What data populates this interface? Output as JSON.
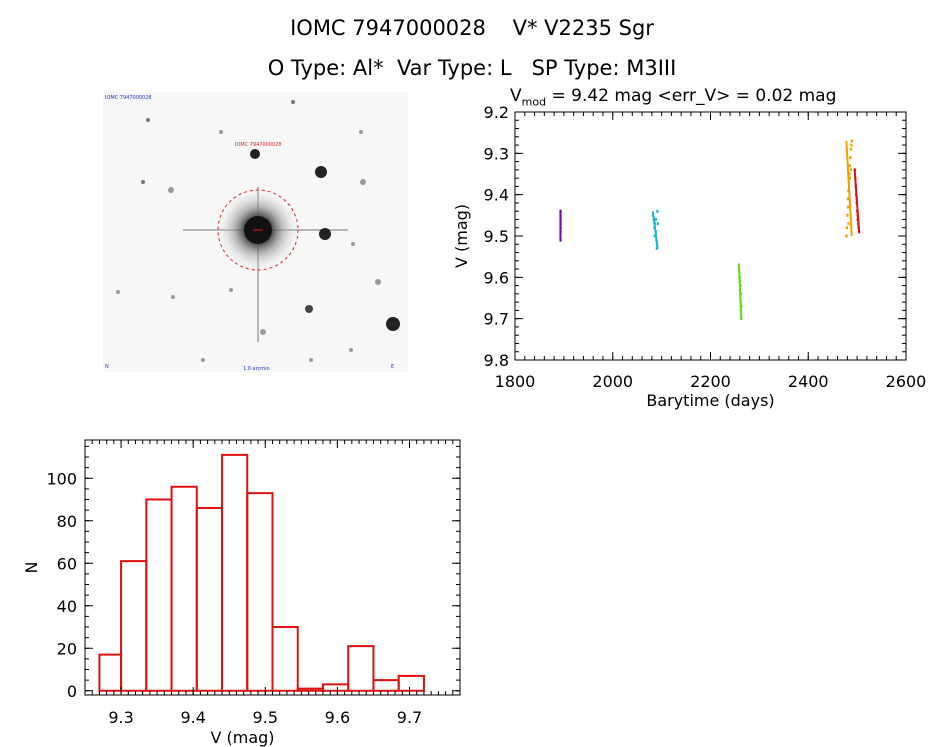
{
  "header": {
    "line1": "IOMC 7947000028    V* V2235 Sgr",
    "line2": "O Type: Al*  Var Type: L   SP Type: M3III",
    "stats_prefix": "V",
    "stats_sub": "mod",
    "stats_rest": " = 9.42 mag <err_V> = 0.02 mag"
  },
  "stamp": {
    "label_top_left": "IOMC 7947000028",
    "label_target": "IOMC 7947000028",
    "label_bottom_left": "N",
    "label_bottom_center": "1.0 arcmin",
    "label_bottom_right": "E"
  },
  "chart_data": [
    {
      "type": "scatter",
      "xlabel": "Barytime (days)",
      "ylabel": "V (mag)",
      "xlim": [
        1800,
        2600
      ],
      "ylim": [
        9.8,
        9.2
      ],
      "y_inverted": true,
      "xticks": [
        "1800",
        "2000",
        "2200",
        "2400",
        "2600"
      ],
      "yticks": [
        "9.2",
        "9.3",
        "9.4",
        "9.5",
        "9.6",
        "9.7",
        "9.8"
      ],
      "series": [
        {
          "color": "#6a0dad",
          "points": [
            [
              1893,
              9.44
            ],
            [
              1893,
              9.45
            ],
            [
              1893,
              9.46
            ],
            [
              1893,
              9.47
            ],
            [
              1893,
              9.48
            ],
            [
              1893,
              9.49
            ],
            [
              1893,
              9.51
            ]
          ]
        },
        {
          "color": "#1fb8c9",
          "points": [
            [
              2082,
              9.45
            ],
            [
              2084,
              9.46
            ],
            [
              2086,
              9.47
            ],
            [
              2085,
              9.48
            ],
            [
              2088,
              9.49
            ],
            [
              2087,
              9.5
            ],
            [
              2089,
              9.51
            ],
            [
              2090,
              9.52
            ],
            [
              2091,
              9.44
            ],
            [
              2092,
              9.47
            ],
            [
              2086,
              9.5
            ],
            [
              2090,
              9.53
            ],
            [
              2088,
              9.46
            ]
          ]
        },
        {
          "color": "#66dd22",
          "points": [
            [
              2258,
              9.57
            ],
            [
              2259,
              9.59
            ],
            [
              2260,
              9.61
            ],
            [
              2261,
              9.62
            ],
            [
              2260,
              9.63
            ],
            [
              2262,
              9.64
            ],
            [
              2261,
              9.65
            ],
            [
              2262,
              9.66
            ],
            [
              2263,
              9.67
            ],
            [
              2262,
              9.68
            ],
            [
              2263,
              9.7
            ],
            [
              2260,
              9.6
            ]
          ]
        },
        {
          "color": "#f0a000",
          "points": [
            [
              2478,
              9.5
            ],
            [
              2479,
              9.48
            ],
            [
              2480,
              9.45
            ],
            [
              2481,
              9.43
            ],
            [
              2481,
              9.41
            ],
            [
              2482,
              9.39
            ],
            [
              2483,
              9.37
            ],
            [
              2484,
              9.35
            ],
            [
              2485,
              9.33
            ],
            [
              2486,
              9.31
            ],
            [
              2487,
              9.29
            ],
            [
              2488,
              9.28
            ],
            [
              2489,
              9.27
            ],
            [
              2482,
              9.47
            ],
            [
              2485,
              9.36
            ],
            [
              2487,
              9.34
            ]
          ]
        },
        {
          "color": "#dd1111",
          "points": [
            [
              2495,
              9.34
            ],
            [
              2496,
              9.36
            ],
            [
              2497,
              9.38
            ],
            [
              2498,
              9.4
            ],
            [
              2499,
              9.42
            ],
            [
              2500,
              9.44
            ],
            [
              2501,
              9.45
            ],
            [
              2502,
              9.47
            ],
            [
              2503,
              9.48
            ],
            [
              2504,
              9.49
            ],
            [
              2499,
              9.41
            ],
            [
              2501,
              9.46
            ]
          ]
        }
      ]
    },
    {
      "type": "bar",
      "xlabel": "V (mag)",
      "ylabel": "N",
      "xlim": [
        9.25,
        9.77
      ],
      "ylim": [
        -2,
        118
      ],
      "xticks": [
        "9.3",
        "9.4",
        "9.5",
        "9.6",
        "9.7"
      ],
      "yticks": [
        "0",
        "20",
        "40",
        "60",
        "80",
        "100"
      ],
      "bin_edges": [
        9.27,
        9.3,
        9.335,
        9.37,
        9.405,
        9.44,
        9.475,
        9.51,
        9.545,
        9.58,
        9.615,
        9.65,
        9.685,
        9.72
      ],
      "values": [
        17,
        61,
        90,
        96,
        86,
        111,
        93,
        30,
        1,
        3,
        21,
        5,
        7,
        0
      ],
      "color": "#dd1111"
    }
  ]
}
